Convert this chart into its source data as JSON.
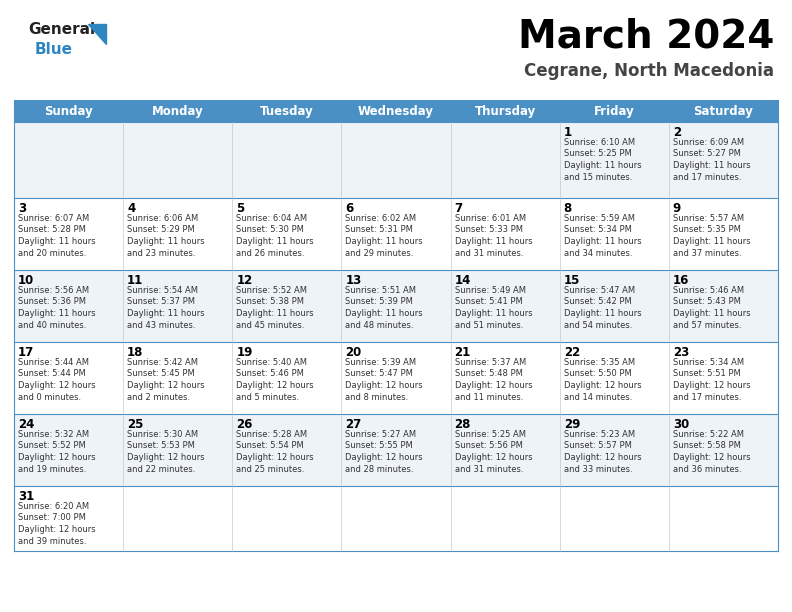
{
  "title": "March 2024",
  "subtitle": "Cegrane, North Macedonia",
  "header_bg": "#4a90c4",
  "header_text_color": "#ffffff",
  "days_of_week": [
    "Sunday",
    "Monday",
    "Tuesday",
    "Wednesday",
    "Thursday",
    "Friday",
    "Saturday"
  ],
  "title_color": "#000000",
  "subtitle_color": "#444444",
  "grid_color": "#4a90c4",
  "day_num_color": "#000000",
  "cell_text_color": "#333333",
  "calendar": [
    [
      {
        "day": "",
        "sunrise": "",
        "sunset": "",
        "daylight": ""
      },
      {
        "day": "",
        "sunrise": "",
        "sunset": "",
        "daylight": ""
      },
      {
        "day": "",
        "sunrise": "",
        "sunset": "",
        "daylight": ""
      },
      {
        "day": "",
        "sunrise": "",
        "sunset": "",
        "daylight": ""
      },
      {
        "day": "",
        "sunrise": "",
        "sunset": "",
        "daylight": ""
      },
      {
        "day": "1",
        "sunrise": "6:10 AM",
        "sunset": "5:25 PM",
        "daylight_h": "11 hours",
        "daylight_m": "and 15 minutes."
      },
      {
        "day": "2",
        "sunrise": "6:09 AM",
        "sunset": "5:27 PM",
        "daylight_h": "11 hours",
        "daylight_m": "and 17 minutes."
      }
    ],
    [
      {
        "day": "3",
        "sunrise": "6:07 AM",
        "sunset": "5:28 PM",
        "daylight_h": "11 hours",
        "daylight_m": "and 20 minutes."
      },
      {
        "day": "4",
        "sunrise": "6:06 AM",
        "sunset": "5:29 PM",
        "daylight_h": "11 hours",
        "daylight_m": "and 23 minutes."
      },
      {
        "day": "5",
        "sunrise": "6:04 AM",
        "sunset": "5:30 PM",
        "daylight_h": "11 hours",
        "daylight_m": "and 26 minutes."
      },
      {
        "day": "6",
        "sunrise": "6:02 AM",
        "sunset": "5:31 PM",
        "daylight_h": "11 hours",
        "daylight_m": "and 29 minutes."
      },
      {
        "day": "7",
        "sunrise": "6:01 AM",
        "sunset": "5:33 PM",
        "daylight_h": "11 hours",
        "daylight_m": "and 31 minutes."
      },
      {
        "day": "8",
        "sunrise": "5:59 AM",
        "sunset": "5:34 PM",
        "daylight_h": "11 hours",
        "daylight_m": "and 34 minutes."
      },
      {
        "day": "9",
        "sunrise": "5:57 AM",
        "sunset": "5:35 PM",
        "daylight_h": "11 hours",
        "daylight_m": "and 37 minutes."
      }
    ],
    [
      {
        "day": "10",
        "sunrise": "5:56 AM",
        "sunset": "5:36 PM",
        "daylight_h": "11 hours",
        "daylight_m": "and 40 minutes."
      },
      {
        "day": "11",
        "sunrise": "5:54 AM",
        "sunset": "5:37 PM",
        "daylight_h": "11 hours",
        "daylight_m": "and 43 minutes."
      },
      {
        "day": "12",
        "sunrise": "5:52 AM",
        "sunset": "5:38 PM",
        "daylight_h": "11 hours",
        "daylight_m": "and 45 minutes."
      },
      {
        "day": "13",
        "sunrise": "5:51 AM",
        "sunset": "5:39 PM",
        "daylight_h": "11 hours",
        "daylight_m": "and 48 minutes."
      },
      {
        "day": "14",
        "sunrise": "5:49 AM",
        "sunset": "5:41 PM",
        "daylight_h": "11 hours",
        "daylight_m": "and 51 minutes."
      },
      {
        "day": "15",
        "sunrise": "5:47 AM",
        "sunset": "5:42 PM",
        "daylight_h": "11 hours",
        "daylight_m": "and 54 minutes."
      },
      {
        "day": "16",
        "sunrise": "5:46 AM",
        "sunset": "5:43 PM",
        "daylight_h": "11 hours",
        "daylight_m": "and 57 minutes."
      }
    ],
    [
      {
        "day": "17",
        "sunrise": "5:44 AM",
        "sunset": "5:44 PM",
        "daylight_h": "12 hours",
        "daylight_m": "and 0 minutes."
      },
      {
        "day": "18",
        "sunrise": "5:42 AM",
        "sunset": "5:45 PM",
        "daylight_h": "12 hours",
        "daylight_m": "and 2 minutes."
      },
      {
        "day": "19",
        "sunrise": "5:40 AM",
        "sunset": "5:46 PM",
        "daylight_h": "12 hours",
        "daylight_m": "and 5 minutes."
      },
      {
        "day": "20",
        "sunrise": "5:39 AM",
        "sunset": "5:47 PM",
        "daylight_h": "12 hours",
        "daylight_m": "and 8 minutes."
      },
      {
        "day": "21",
        "sunrise": "5:37 AM",
        "sunset": "5:48 PM",
        "daylight_h": "12 hours",
        "daylight_m": "and 11 minutes."
      },
      {
        "day": "22",
        "sunrise": "5:35 AM",
        "sunset": "5:50 PM",
        "daylight_h": "12 hours",
        "daylight_m": "and 14 minutes."
      },
      {
        "day": "23",
        "sunrise": "5:34 AM",
        "sunset": "5:51 PM",
        "daylight_h": "12 hours",
        "daylight_m": "and 17 minutes."
      }
    ],
    [
      {
        "day": "24",
        "sunrise": "5:32 AM",
        "sunset": "5:52 PM",
        "daylight_h": "12 hours",
        "daylight_m": "and 19 minutes."
      },
      {
        "day": "25",
        "sunrise": "5:30 AM",
        "sunset": "5:53 PM",
        "daylight_h": "12 hours",
        "daylight_m": "and 22 minutes."
      },
      {
        "day": "26",
        "sunrise": "5:28 AM",
        "sunset": "5:54 PM",
        "daylight_h": "12 hours",
        "daylight_m": "and 25 minutes."
      },
      {
        "day": "27",
        "sunrise": "5:27 AM",
        "sunset": "5:55 PM",
        "daylight_h": "12 hours",
        "daylight_m": "and 28 minutes."
      },
      {
        "day": "28",
        "sunrise": "5:25 AM",
        "sunset": "5:56 PM",
        "daylight_h": "12 hours",
        "daylight_m": "and 31 minutes."
      },
      {
        "day": "29",
        "sunrise": "5:23 AM",
        "sunset": "5:57 PM",
        "daylight_h": "12 hours",
        "daylight_m": "and 33 minutes."
      },
      {
        "day": "30",
        "sunrise": "5:22 AM",
        "sunset": "5:58 PM",
        "daylight_h": "12 hours",
        "daylight_m": "and 36 minutes."
      }
    ],
    [
      {
        "day": "31",
        "sunrise": "6:20 AM",
        "sunset": "7:00 PM",
        "daylight_h": "12 hours",
        "daylight_m": "and 39 minutes."
      },
      {
        "day": "",
        "sunrise": "",
        "sunset": "",
        "daylight_h": "",
        "daylight_m": ""
      },
      {
        "day": "",
        "sunrise": "",
        "sunset": "",
        "daylight_h": "",
        "daylight_m": ""
      },
      {
        "day": "",
        "sunrise": "",
        "sunset": "",
        "daylight_h": "",
        "daylight_m": ""
      },
      {
        "day": "",
        "sunrise": "",
        "sunset": "",
        "daylight_h": "",
        "daylight_m": ""
      },
      {
        "day": "",
        "sunrise": "",
        "sunset": "",
        "daylight_h": "",
        "daylight_m": ""
      },
      {
        "day": "",
        "sunrise": "",
        "sunset": "",
        "daylight_h": "",
        "daylight_m": ""
      }
    ]
  ]
}
